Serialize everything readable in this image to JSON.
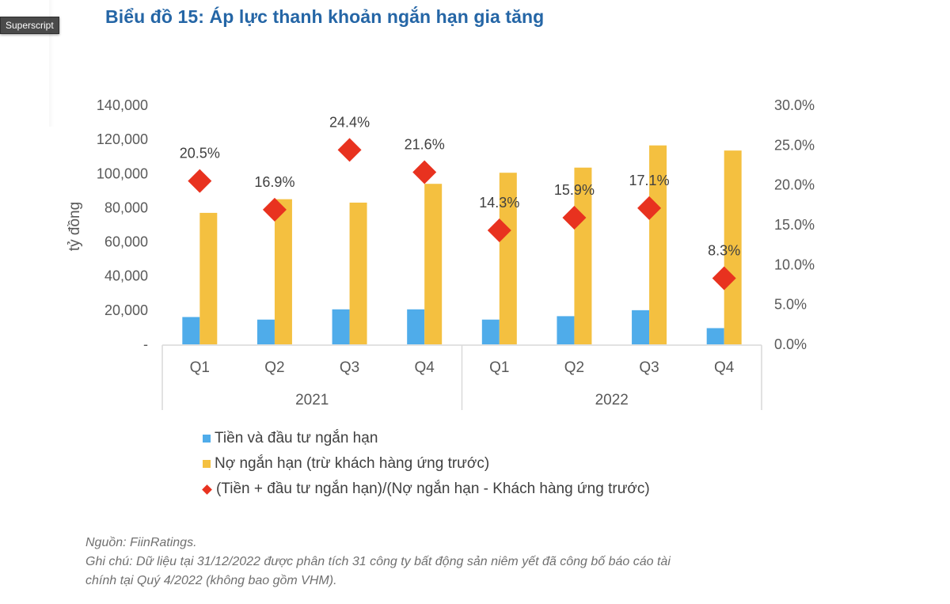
{
  "tooltip": {
    "label": "Superscript"
  },
  "title": "Biểu đồ 15: Áp lực thanh khoản ngắn hạn gia tăng",
  "chart_data": {
    "type": "bar",
    "title": "Biểu đồ 15: Áp lực thanh khoản ngắn hạn gia tăng",
    "ylabel": "tỷ đồng",
    "ylabel_right": "",
    "xlabel": "",
    "ylim": [
      0,
      140000
    ],
    "ylim_right": [
      0,
      0.3
    ],
    "y_ticks": [
      "-",
      "20,000",
      "40,000",
      "60,000",
      "80,000",
      "100,000",
      "120,000",
      "140,000"
    ],
    "y_right_ticks": [
      "0.0%",
      "5.0%",
      "10.0%",
      "15.0%",
      "20.0%",
      "25.0%",
      "30.0%"
    ],
    "grid": false,
    "categories": [
      "Q1",
      "Q2",
      "Q3",
      "Q4",
      "Q1",
      "Q2",
      "Q3",
      "Q4"
    ],
    "groups": [
      {
        "label": "2021",
        "count": 4
      },
      {
        "label": "2022",
        "count": 4
      }
    ],
    "series": [
      {
        "name": "Tiền và đầu tư ngắn hạn",
        "type": "bar",
        "axis": "left",
        "color": "#4facea",
        "values": [
          16000,
          14500,
          20500,
          20500,
          14500,
          16500,
          20000,
          9500
        ]
      },
      {
        "name": "Nợ ngắn hạn (trừ khách hàng ứng trước)",
        "type": "bar",
        "axis": "left",
        "color": "#f4c040",
        "values": [
          77000,
          85000,
          83000,
          94000,
          100500,
          103500,
          116500,
          113500
        ]
      },
      {
        "name": "(Tiền + đầu tư ngắn hạn)/(Nợ ngắn hạn - Khách hàng ứng trước)",
        "type": "scatter",
        "marker": "diamond",
        "axis": "right",
        "color": "#e8321f",
        "values": [
          0.205,
          0.169,
          0.244,
          0.216,
          0.143,
          0.159,
          0.171,
          0.083
        ],
        "labels": [
          "20.5%",
          "16.9%",
          "24.4%",
          "21.6%",
          "14.3%",
          "15.9%",
          "17.1%",
          "8.3%"
        ]
      }
    ],
    "legend_position": "bottom"
  },
  "legend": [
    {
      "label": "Tiền và đầu tư ngắn hạn",
      "marker": "square",
      "color": "#4facea"
    },
    {
      "label": "Nợ ngắn hạn (trừ khách hàng ứng trước)",
      "marker": "square",
      "color": "#f4c040"
    },
    {
      "label": "(Tiền + đầu tư ngắn hạn)/(Nợ ngắn hạn - Khách hàng ứng trước)",
      "marker": "diamond",
      "color": "#e8321f"
    }
  ],
  "notes": {
    "source": "Nguồn: FiinRatings.",
    "note_line1": "Ghi chú: Dữ liệu tại 31/12/2022 được phân tích 31 công ty bất động sản niêm yết đã công bố báo cáo tài",
    "note_line2": "chính tại Quý 4/2022 (không bao gồm VHM)."
  }
}
